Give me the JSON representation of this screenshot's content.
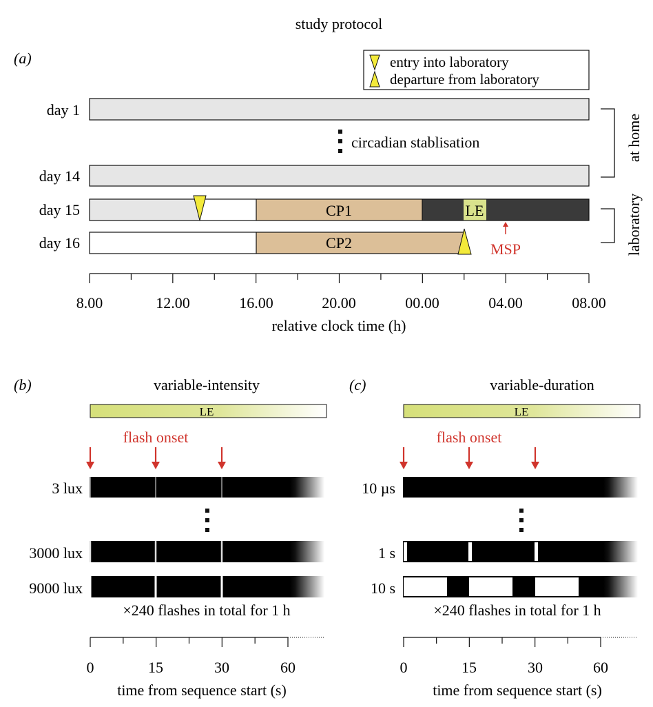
{
  "title": "study protocol",
  "colors": {
    "home": "#e6e6e6",
    "white": "#ffffff",
    "cp": "#dcbf98",
    "dark": "#3a3a3a",
    "le": "#d9e28c",
    "yellow": "#f3ea3a",
    "red": "#d0342c",
    "flash_black": "#000000"
  },
  "panel_a": {
    "label": "(a)",
    "legend": {
      "entry": "entry into laboratory",
      "departure": "departure from laboratory"
    },
    "rows": {
      "day1": "day 1",
      "day14": "day 14",
      "day15": "day 15",
      "day16": "day 16"
    },
    "stabilisation": "circadian stablisation",
    "cp1": "CP1",
    "cp2": "CP2",
    "le": "LE",
    "msp": "MSP",
    "at_home": "at home",
    "laboratory": "laboratory",
    "ticks": [
      "8.00",
      "12.00",
      "16.00",
      "20.00",
      "00.00",
      "04.00",
      "08.00"
    ],
    "xlabel": "relative clock time (h)"
  },
  "panel_b": {
    "label": "(b)",
    "title": "variable-intensity",
    "le": "LE",
    "flash_onset": "flash onset",
    "rows": [
      "3 lux",
      "3000 lux",
      "9000 lux"
    ],
    "total": "×240 flashes in total for 1 h",
    "ticks": [
      "0",
      "15",
      "30",
      "60"
    ],
    "xlabel": "time from sequence start (s)"
  },
  "panel_c": {
    "label": "(c)",
    "title": "variable-duration",
    "le": "LE",
    "flash_onset": "flash onset",
    "rows": [
      "10 µs",
      "1 s",
      "10 s"
    ],
    "total": "×240 flashes in total for 1 h",
    "ticks": [
      "0",
      "15",
      "30",
      "60"
    ],
    "xlabel": "time from sequence start (s)"
  }
}
